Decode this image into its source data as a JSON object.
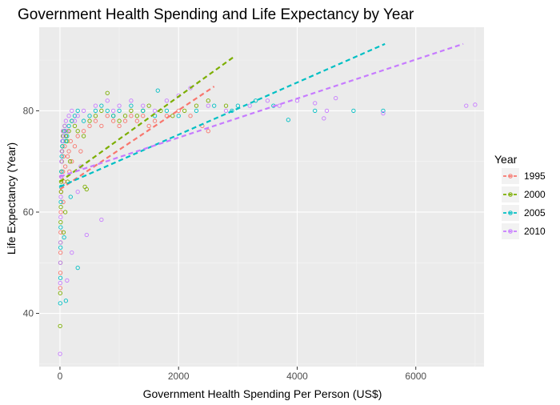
{
  "chart_data": {
    "type": "scatter",
    "title": "Government Health Spending and Life Expectancy by Year",
    "xlabel": "Government Health Spending Per Person (US$)",
    "ylabel": "Life Expectancy (Year)",
    "xlim": [
      -350,
      7150
    ],
    "ylim": [
      29.5,
      96.5
    ],
    "x_ticks": [
      0,
      2000,
      4000,
      6000
    ],
    "y_ticks": [
      40,
      60,
      80
    ],
    "x_minor": [
      1000,
      3000,
      5000,
      7000
    ],
    "y_minor": [
      30,
      50,
      70,
      90
    ],
    "grid": true,
    "legend": {
      "title": "Year",
      "placement": "right"
    },
    "background": "#ebebeb",
    "series": [
      {
        "name": "1995",
        "color": "#F8766D",
        "points": [
          [
            5,
            45
          ],
          [
            8,
            48
          ],
          [
            10,
            52
          ],
          [
            12,
            56
          ],
          [
            15,
            60
          ],
          [
            20,
            64
          ],
          [
            25,
            67
          ],
          [
            30,
            70
          ],
          [
            35,
            72
          ],
          [
            40,
            74
          ],
          [
            50,
            68
          ],
          [
            60,
            71
          ],
          [
            80,
            73
          ],
          [
            100,
            75
          ],
          [
            120,
            76
          ],
          [
            150,
            72
          ],
          [
            180,
            74
          ],
          [
            200,
            70
          ],
          [
            250,
            73
          ],
          [
            300,
            75
          ],
          [
            350,
            72
          ],
          [
            400,
            76
          ],
          [
            500,
            77
          ],
          [
            600,
            78
          ],
          [
            700,
            77
          ],
          [
            800,
            79
          ],
          [
            900,
            78
          ],
          [
            1000,
            77
          ],
          [
            1100,
            78
          ],
          [
            1200,
            79
          ],
          [
            1300,
            78
          ],
          [
            1400,
            79
          ],
          [
            1500,
            77
          ],
          [
            1600,
            78
          ],
          [
            1800,
            79
          ],
          [
            2000,
            80
          ],
          [
            2200,
            79
          ],
          [
            2400,
            77
          ],
          [
            2500,
            76
          ],
          [
            55,
            62
          ],
          [
            70,
            66
          ],
          [
            90,
            69
          ],
          [
            130,
            71
          ],
          [
            160,
            68
          ]
        ],
        "trend": [
          [
            0,
            64.5
          ],
          [
            2600,
            84.8
          ]
        ]
      },
      {
        "name": "2000",
        "color": "#7CAE00",
        "points": [
          [
            3,
            37.5
          ],
          [
            5,
            44
          ],
          [
            8,
            50
          ],
          [
            10,
            54
          ],
          [
            12,
            58
          ],
          [
            15,
            61
          ],
          [
            18,
            64
          ],
          [
            20,
            66
          ],
          [
            25,
            68
          ],
          [
            30,
            70
          ],
          [
            35,
            72
          ],
          [
            40,
            73
          ],
          [
            50,
            75
          ],
          [
            60,
            76
          ],
          [
            80,
            77
          ],
          [
            100,
            75
          ],
          [
            120,
            74
          ],
          [
            150,
            76
          ],
          [
            200,
            78
          ],
          [
            250,
            77
          ],
          [
            300,
            76
          ],
          [
            400,
            75
          ],
          [
            420,
            65
          ],
          [
            450,
            64.5
          ],
          [
            500,
            78
          ],
          [
            600,
            79
          ],
          [
            700,
            80
          ],
          [
            800,
            83.5
          ],
          [
            900,
            79
          ],
          [
            1000,
            78
          ],
          [
            1100,
            79
          ],
          [
            1200,
            80
          ],
          [
            1300,
            79
          ],
          [
            1400,
            80
          ],
          [
            1500,
            81
          ],
          [
            1700,
            80
          ],
          [
            1900,
            79
          ],
          [
            2100,
            80
          ],
          [
            2300,
            81
          ],
          [
            2500,
            82
          ],
          [
            2800,
            81
          ],
          [
            60,
            56
          ],
          [
            90,
            60
          ],
          [
            130,
            66
          ],
          [
            170,
            70
          ]
        ],
        "trend": [
          [
            0,
            66
          ],
          [
            2950,
            90.8
          ]
        ]
      },
      {
        "name": "2005",
        "color": "#00BFC4",
        "points": [
          [
            5,
            42
          ],
          [
            8,
            47
          ],
          [
            10,
            53
          ],
          [
            12,
            57
          ],
          [
            15,
            62
          ],
          [
            20,
            65
          ],
          [
            25,
            68
          ],
          [
            30,
            71
          ],
          [
            40,
            73
          ],
          [
            50,
            74
          ],
          [
            60,
            75
          ],
          [
            80,
            76
          ],
          [
            100,
            74
          ],
          [
            120,
            75
          ],
          [
            150,
            77
          ],
          [
            200,
            78
          ],
          [
            250,
            79
          ],
          [
            300,
            80
          ],
          [
            400,
            78
          ],
          [
            500,
            79
          ],
          [
            600,
            80
          ],
          [
            700,
            81
          ],
          [
            800,
            80
          ],
          [
            900,
            79
          ],
          [
            1000,
            80
          ],
          [
            1200,
            81
          ],
          [
            1400,
            80
          ],
          [
            1600,
            79
          ],
          [
            1650,
            84
          ],
          [
            1800,
            80
          ],
          [
            2000,
            79
          ],
          [
            2300,
            80
          ],
          [
            2600,
            81
          ],
          [
            2900,
            80
          ],
          [
            3000,
            81
          ],
          [
            3300,
            82
          ],
          [
            3600,
            81
          ],
          [
            3850,
            78.2
          ],
          [
            4300,
            80
          ],
          [
            4950,
            80
          ],
          [
            5450,
            80
          ],
          [
            100,
            42.5
          ],
          [
            300,
            49
          ],
          [
            70,
            55
          ],
          [
            180,
            63
          ]
        ],
        "trend": [
          [
            0,
            65
          ],
          [
            5480,
            93.2
          ]
        ]
      },
      {
        "name": "2010",
        "color": "#C77CFF",
        "points": [
          [
            2,
            32
          ],
          [
            5,
            46
          ],
          [
            8,
            50
          ],
          [
            10,
            54
          ],
          [
            12,
            59
          ],
          [
            15,
            63
          ],
          [
            20,
            67
          ],
          [
            25,
            70
          ],
          [
            30,
            72
          ],
          [
            40,
            74
          ],
          [
            50,
            76
          ],
          [
            60,
            75
          ],
          [
            80,
            77
          ],
          [
            100,
            78
          ],
          [
            120,
            76
          ],
          [
            150,
            79
          ],
          [
            200,
            80
          ],
          [
            250,
            78
          ],
          [
            300,
            79
          ],
          [
            400,
            80
          ],
          [
            450,
            55.5
          ],
          [
            600,
            81
          ],
          [
            700,
            58.5
          ],
          [
            800,
            82
          ],
          [
            900,
            80
          ],
          [
            1000,
            81
          ],
          [
            1200,
            82
          ],
          [
            1400,
            81
          ],
          [
            1600,
            80
          ],
          [
            1800,
            82
          ],
          [
            2000,
            83
          ],
          [
            2200,
            84.5
          ],
          [
            2500,
            81
          ],
          [
            2800,
            80
          ],
          [
            3200,
            81
          ],
          [
            3500,
            82
          ],
          [
            3700,
            81
          ],
          [
            4000,
            82
          ],
          [
            4300,
            81.5
          ],
          [
            4450,
            78.5
          ],
          [
            4500,
            80
          ],
          [
            4650,
            82.5
          ],
          [
            5450,
            79.5
          ],
          [
            6850,
            81
          ],
          [
            7000,
            81.2
          ],
          [
            120,
            46.5
          ],
          [
            200,
            52
          ],
          [
            300,
            64
          ],
          [
            350,
            69
          ]
        ],
        "trend": [
          [
            0,
            67
          ],
          [
            6800,
            93.2
          ]
        ]
      }
    ]
  }
}
